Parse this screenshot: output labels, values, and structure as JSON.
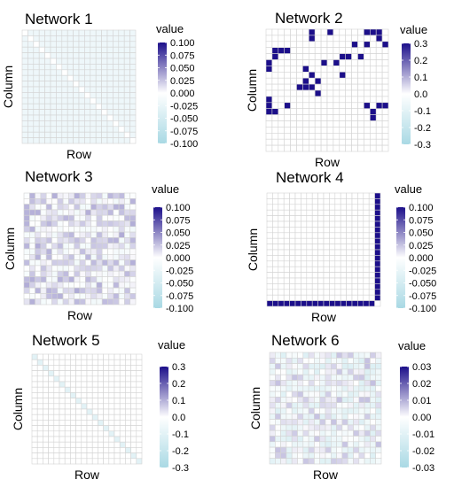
{
  "chart_data": [
    {
      "type": "heatmap",
      "title": "Network 1",
      "xlabel": "Row",
      "ylabel": "Column",
      "size": 20,
      "fill": "constant",
      "base_value": -0.02,
      "diagonal_value": 0.0,
      "cells": [],
      "legend": {
        "title": "value",
        "min": -0.1,
        "max": 0.1,
        "ticks": [
          "0.100",
          "0.075",
          "0.050",
          "0.025",
          "0.000",
          "-0.025",
          "-0.050",
          "-0.075",
          "-0.100"
        ]
      }
    },
    {
      "type": "heatmap",
      "title": "Network 2",
      "xlabel": "Row",
      "ylabel": "Column",
      "size": 20,
      "fill": "sparse",
      "base_value": 0.0,
      "cells": [
        [
          7,
          0,
          0.3
        ],
        [
          7,
          1,
          0.3
        ],
        [
          10,
          0,
          0.3
        ],
        [
          16,
          0,
          0.3
        ],
        [
          17,
          0,
          0.3
        ],
        [
          18,
          0,
          0.3
        ],
        [
          18,
          1,
          0.3
        ],
        [
          1,
          3,
          0.3
        ],
        [
          2,
          3,
          0.3
        ],
        [
          3,
          3,
          0.3
        ],
        [
          14,
          2,
          0.3
        ],
        [
          16,
          2,
          0.3
        ],
        [
          19,
          2,
          0.3
        ],
        [
          1,
          4,
          0.3
        ],
        [
          12,
          4,
          0.3
        ],
        [
          13,
          4,
          0.3
        ],
        [
          15,
          4,
          0.3
        ],
        [
          0,
          5,
          0.3
        ],
        [
          9,
          5,
          0.3
        ],
        [
          11,
          5,
          0.3
        ],
        [
          0,
          6,
          0.3
        ],
        [
          6,
          6,
          0.3
        ],
        [
          7,
          7,
          0.3
        ],
        [
          12,
          7,
          0.3
        ],
        [
          6,
          8,
          0.3
        ],
        [
          8,
          8,
          0.3
        ],
        [
          5,
          9,
          0.3
        ],
        [
          6,
          9,
          0.3
        ],
        [
          7,
          9,
          0.3
        ],
        [
          8,
          10,
          0.3
        ],
        [
          0,
          11,
          0.3
        ],
        [
          0,
          12,
          0.3
        ],
        [
          3,
          12,
          0.3
        ],
        [
          16,
          12,
          0.3
        ],
        [
          18,
          12,
          0.3
        ],
        [
          19,
          12,
          0.3
        ],
        [
          0,
          13,
          0.3
        ],
        [
          1,
          13,
          0.3
        ],
        [
          17,
          13,
          0.3
        ],
        [
          17,
          14,
          0.3
        ]
      ],
      "legend": {
        "title": "value",
        "min": -0.3,
        "max": 0.3,
        "ticks": [
          "0.3",
          "0.2",
          "0.1",
          "0.0",
          "-0.1",
          "-0.2",
          "-0.3"
        ]
      }
    },
    {
      "type": "heatmap",
      "title": "Network 3",
      "xlabel": "Row",
      "ylabel": "Column",
      "size": 20,
      "fill": "noise",
      "range": [
        -0.015,
        0.035
      ],
      "seed": 3,
      "cells": [],
      "legend": {
        "title": "value",
        "min": -0.1,
        "max": 0.1,
        "ticks": [
          "0.100",
          "0.075",
          "0.050",
          "0.025",
          "0.000",
          "-0.025",
          "-0.050",
          "-0.075",
          "-0.100"
        ]
      }
    },
    {
      "type": "heatmap",
      "title": "Network 4",
      "xlabel": "Row",
      "ylabel": "Column",
      "size": 20,
      "fill": "edge",
      "base_value": 0.0,
      "edge_value": 0.1,
      "cells": [],
      "legend": {
        "title": "value",
        "min": -0.1,
        "max": 0.1,
        "ticks": [
          "0.100",
          "0.075",
          "0.050",
          "0.025",
          "0.000",
          "-0.025",
          "-0.050",
          "-0.075",
          "-0.100"
        ]
      }
    },
    {
      "type": "heatmap",
      "title": "Network 5",
      "xlabel": "Row",
      "ylabel": "Column",
      "size": 20,
      "fill": "diagonal",
      "base_value": 0.0,
      "diagonal_value": -0.1,
      "cells": [],
      "legend": {
        "title": "value",
        "min": -0.3,
        "max": 0.3,
        "ticks": [
          "0.3",
          "0.2",
          "0.1",
          "0.0",
          "-0.1",
          "-0.2",
          "-0.3"
        ]
      }
    },
    {
      "type": "heatmap",
      "title": "Network 6",
      "xlabel": "Row",
      "ylabel": "Column",
      "size": 20,
      "fill": "noise",
      "range": [
        -0.012,
        0.008
      ],
      "seed": 6,
      "cells": [],
      "legend": {
        "title": "value",
        "min": -0.03,
        "max": 0.03,
        "ticks": [
          "0.03",
          "0.02",
          "0.01",
          "0.00",
          "-0.01",
          "-0.02",
          "-0.03"
        ]
      }
    }
  ],
  "colors": {
    "high": "#1c0f8a",
    "mid": "#ffffff",
    "low": "#a9d9e4",
    "grid": "#d3d3d3"
  }
}
